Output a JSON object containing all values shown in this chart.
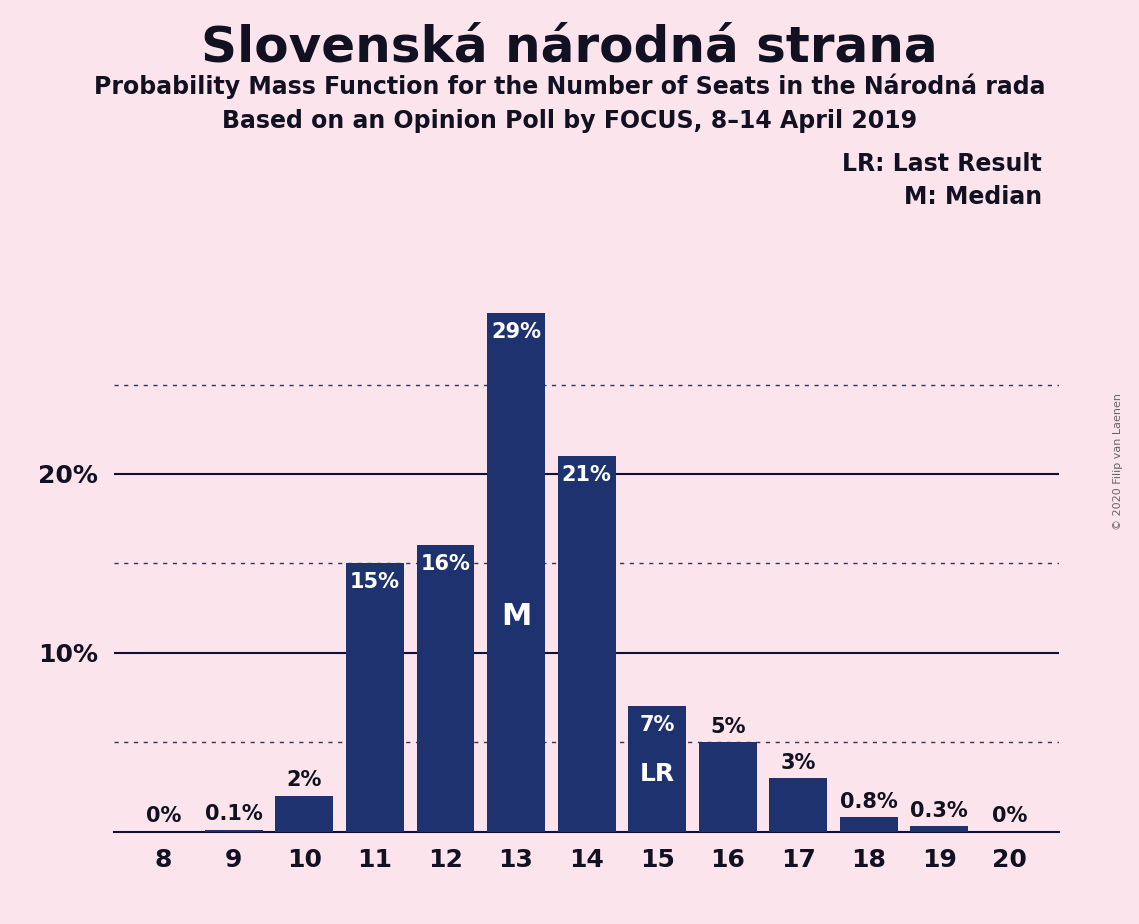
{
  "title": "Slovenská národná strana",
  "subtitle1": "Probability Mass Function for the Number of Seats in the Národná rada",
  "subtitle2": "Based on an Opinion Poll by FOCUS, 8–14 April 2019",
  "copyright": "© 2020 Filip van Laenen",
  "seats": [
    8,
    9,
    10,
    11,
    12,
    13,
    14,
    15,
    16,
    17,
    18,
    19,
    20
  ],
  "probabilities": [
    0.0,
    0.1,
    2.0,
    15.0,
    16.0,
    29.0,
    21.0,
    7.0,
    5.0,
    3.0,
    0.8,
    0.3,
    0.0
  ],
  "labels": [
    "0%",
    "0.1%",
    "2%",
    "15%",
    "16%",
    "29%",
    "21%",
    "7%",
    "5%",
    "3%",
    "0.8%",
    "0.3%",
    "0%"
  ],
  "bar_color": "#1e3270",
  "background_color": "#fce4ec",
  "median_seat": 13,
  "last_result_seat": 15,
  "median_label": "M",
  "last_result_label": "LR",
  "legend_lr": "LR: Last Result",
  "legend_m": "M: Median",
  "dotted_lines": [
    5,
    15,
    25
  ],
  "solid_lines": [
    10,
    20
  ],
  "ylim_max": 31,
  "white_label_seats": [
    11,
    12,
    13,
    14,
    15
  ],
  "label_fontsize": 15,
  "title_fontsize": 36,
  "subtitle_fontsize": 17
}
